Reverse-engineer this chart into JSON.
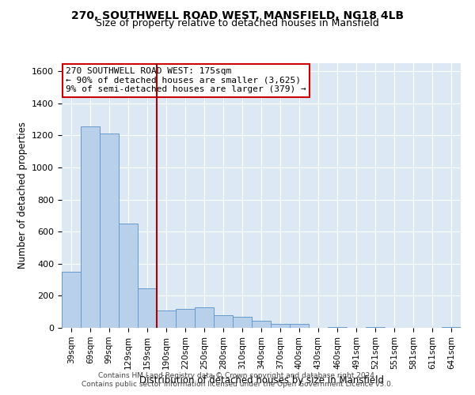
{
  "title1": "270, SOUTHWELL ROAD WEST, MANSFIELD, NG18 4LB",
  "title2": "Size of property relative to detached houses in Mansfield",
  "xlabel": "Distribution of detached houses by size in Mansfield",
  "ylabel": "Number of detached properties",
  "footer1": "Contains HM Land Registry data © Crown copyright and database right 2024.",
  "footer2": "Contains public sector information licensed under the Open Government Licence v3.0.",
  "annotation_line1": "270 SOUTHWELL ROAD WEST: 175sqm",
  "annotation_line2": "← 90% of detached houses are smaller (3,625)",
  "annotation_line3": "9% of semi-detached houses are larger (379) →",
  "bar_color": "#b8d0ea",
  "bar_edge_color": "#6699cc",
  "vline_color": "#aa0000",
  "vline_position": 175,
  "background_color": "#dce9f5",
  "categories": [
    "39sqm",
    "69sqm",
    "99sqm",
    "129sqm",
    "159sqm",
    "190sqm",
    "220sqm",
    "250sqm",
    "280sqm",
    "310sqm",
    "340sqm",
    "370sqm",
    "400sqm",
    "430sqm",
    "460sqm",
    "491sqm",
    "521sqm",
    "551sqm",
    "581sqm",
    "611sqm",
    "641sqm"
  ],
  "bin_edges": [
    24,
    54,
    84,
    114,
    144,
    174,
    205,
    235,
    265,
    295,
    325,
    355,
    385,
    415,
    445,
    476,
    506,
    536,
    566,
    596,
    626,
    656
  ],
  "values": [
    350,
    1255,
    1210,
    650,
    245,
    110,
    120,
    130,
    80,
    70,
    45,
    25,
    25,
    0,
    5,
    0,
    5,
    0,
    0,
    0,
    5
  ],
  "ylim": [
    0,
    1650
  ],
  "yticks": [
    0,
    200,
    400,
    600,
    800,
    1000,
    1200,
    1400,
    1600
  ]
}
